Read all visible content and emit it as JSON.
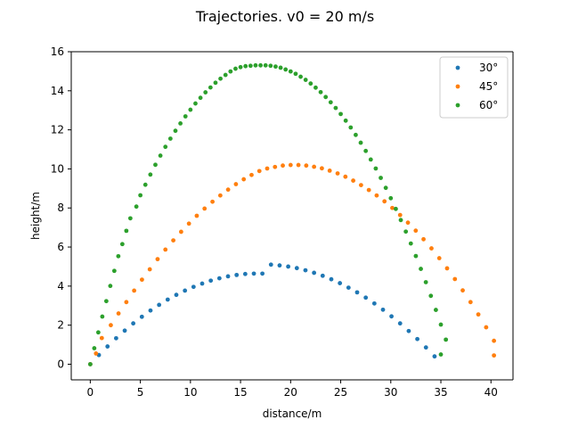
{
  "chart_data": {
    "type": "scatter",
    "title": "Trajectories. v0 = 20 m/s",
    "xlabel": "distance/m",
    "ylabel": "height/m",
    "xlim": [
      -1.9,
      42.2
    ],
    "ylim": [
      -0.8,
      16.0
    ],
    "xticks": [
      0,
      5,
      10,
      15,
      20,
      25,
      30,
      35,
      40
    ],
    "yticks": [
      0,
      2,
      4,
      6,
      8,
      10,
      12,
      14,
      16
    ],
    "grid": false,
    "legend_position": "top-right",
    "series": [
      {
        "name": "30°",
        "color": "#1f77b4",
        "points": [
          [
            0.0,
            0.0
          ],
          [
            0.86,
            0.47
          ],
          [
            1.72,
            0.91
          ],
          [
            2.58,
            1.33
          ],
          [
            3.44,
            1.72
          ],
          [
            4.29,
            2.09
          ],
          [
            5.15,
            2.43
          ],
          [
            6.01,
            2.75
          ],
          [
            6.87,
            3.04
          ],
          [
            7.73,
            3.31
          ],
          [
            8.59,
            3.55
          ],
          [
            9.45,
            3.77
          ],
          [
            10.31,
            3.96
          ],
          [
            11.17,
            4.13
          ],
          [
            12.03,
            4.28
          ],
          [
            12.89,
            4.4
          ],
          [
            13.75,
            4.5
          ],
          [
            14.61,
            4.57
          ],
          [
            15.47,
            4.62
          ],
          [
            16.33,
            4.64
          ],
          [
            17.18,
            4.64
          ],
          [
            18.04,
            5.1
          ],
          [
            18.9,
            5.06
          ],
          [
            19.76,
            5.0
          ],
          [
            20.62,
            4.92
          ],
          [
            21.48,
            4.81
          ],
          [
            22.34,
            4.68
          ],
          [
            23.2,
            4.53
          ],
          [
            24.06,
            4.35
          ],
          [
            24.92,
            4.15
          ],
          [
            25.78,
            3.92
          ],
          [
            26.64,
            3.68
          ],
          [
            27.5,
            3.41
          ],
          [
            28.36,
            3.11
          ],
          [
            29.22,
            2.79
          ],
          [
            30.07,
            2.45
          ],
          [
            30.93,
            2.09
          ],
          [
            31.79,
            1.7
          ],
          [
            32.65,
            1.29
          ],
          [
            33.51,
            0.86
          ],
          [
            34.37,
            0.4
          ]
        ]
      },
      {
        "name": "45°",
        "color": "#ff7f0e",
        "points": [
          [
            0.0,
            0.0
          ],
          [
            0.57,
            0.55
          ],
          [
            1.15,
            1.34
          ],
          [
            2.05,
            2.0
          ],
          [
            2.82,
            2.6
          ],
          [
            3.6,
            3.18
          ],
          [
            4.38,
            3.77
          ],
          [
            5.16,
            4.33
          ],
          [
            5.94,
            4.86
          ],
          [
            6.72,
            5.38
          ],
          [
            7.5,
            5.87
          ],
          [
            8.29,
            6.34
          ],
          [
            9.07,
            6.78
          ],
          [
            9.85,
            7.2
          ],
          [
            10.63,
            7.6
          ],
          [
            11.41,
            7.97
          ],
          [
            12.2,
            8.32
          ],
          [
            12.98,
            8.64
          ],
          [
            13.76,
            8.94
          ],
          [
            14.54,
            9.22
          ],
          [
            15.32,
            9.47
          ],
          [
            16.1,
            9.69
          ],
          [
            16.88,
            9.89
          ],
          [
            17.66,
            10.02
          ],
          [
            18.44,
            10.1
          ],
          [
            19.22,
            10.17
          ],
          [
            20.0,
            10.2
          ],
          [
            20.78,
            10.2
          ],
          [
            21.56,
            10.17
          ],
          [
            22.34,
            10.11
          ],
          [
            23.12,
            10.03
          ],
          [
            23.9,
            9.91
          ],
          [
            24.69,
            9.77
          ],
          [
            25.47,
            9.6
          ],
          [
            26.25,
            9.4
          ],
          [
            27.03,
            9.17
          ],
          [
            27.81,
            8.92
          ],
          [
            28.59,
            8.64
          ],
          [
            29.37,
            8.34
          ],
          [
            30.15,
            8.0
          ],
          [
            30.93,
            7.64
          ],
          [
            31.71,
            7.25
          ],
          [
            32.49,
            6.84
          ],
          [
            33.27,
            6.4
          ],
          [
            34.06,
            5.93
          ],
          [
            34.84,
            5.43
          ],
          [
            35.62,
            4.91
          ],
          [
            36.4,
            4.36
          ],
          [
            37.18,
            3.78
          ],
          [
            37.96,
            3.18
          ],
          [
            38.74,
            2.55
          ],
          [
            39.52,
            1.89
          ],
          [
            40.3,
            1.2
          ],
          [
            40.3,
            0.45
          ]
        ]
      },
      {
        "name": "60°",
        "color": "#2ca02c",
        "points": [
          [
            0.0,
            0.0
          ],
          [
            0.4,
            0.82
          ],
          [
            0.8,
            1.63
          ],
          [
            1.2,
            2.44
          ],
          [
            1.6,
            3.23
          ],
          [
            2.0,
            4.01
          ],
          [
            2.4,
            4.78
          ],
          [
            2.8,
            5.53
          ],
          [
            3.2,
            6.15
          ],
          [
            3.6,
            6.83
          ],
          [
            4.0,
            7.47
          ],
          [
            4.6,
            8.07
          ],
          [
            5.0,
            8.65
          ],
          [
            5.5,
            9.19
          ],
          [
            6.0,
            9.71
          ],
          [
            6.5,
            10.21
          ],
          [
            7.0,
            10.68
          ],
          [
            7.5,
            11.13
          ],
          [
            8.0,
            11.55
          ],
          [
            8.5,
            11.95
          ],
          [
            9.0,
            12.33
          ],
          [
            9.5,
            12.69
          ],
          [
            10.0,
            13.03
          ],
          [
            10.5,
            13.35
          ],
          [
            11.0,
            13.64
          ],
          [
            11.5,
            13.92
          ],
          [
            12.0,
            14.17
          ],
          [
            12.5,
            14.41
          ],
          [
            13.0,
            14.62
          ],
          [
            13.5,
            14.81
          ],
          [
            14.0,
            14.99
          ],
          [
            14.5,
            15.13
          ],
          [
            15.0,
            15.21
          ],
          [
            15.5,
            15.26
          ],
          [
            16.0,
            15.28
          ],
          [
            16.5,
            15.3
          ],
          [
            17.0,
            15.3
          ],
          [
            17.5,
            15.3
          ],
          [
            18.0,
            15.28
          ],
          [
            18.5,
            15.24
          ],
          [
            19.0,
            15.18
          ],
          [
            19.5,
            15.09
          ],
          [
            20.0,
            14.99
          ],
          [
            20.5,
            14.87
          ],
          [
            21.0,
            14.72
          ],
          [
            21.5,
            14.56
          ],
          [
            22.0,
            14.37
          ],
          [
            22.5,
            14.16
          ],
          [
            23.0,
            13.93
          ],
          [
            23.5,
            13.68
          ],
          [
            24.0,
            13.41
          ],
          [
            24.5,
            13.12
          ],
          [
            25.0,
            12.81
          ],
          [
            25.5,
            12.47
          ],
          [
            26.0,
            12.12
          ],
          [
            26.5,
            11.74
          ],
          [
            27.0,
            11.34
          ],
          [
            27.5,
            10.92
          ],
          [
            28.0,
            10.48
          ],
          [
            28.5,
            10.02
          ],
          [
            29.0,
            9.54
          ],
          [
            29.5,
            9.03
          ],
          [
            30.0,
            8.5
          ],
          [
            30.5,
            7.95
          ],
          [
            31.0,
            7.38
          ],
          [
            31.5,
            6.79
          ],
          [
            32.0,
            6.18
          ],
          [
            32.5,
            5.54
          ],
          [
            33.0,
            4.88
          ],
          [
            33.5,
            4.2
          ],
          [
            34.0,
            3.5
          ],
          [
            34.5,
            2.78
          ],
          [
            35.0,
            2.03
          ],
          [
            35.5,
            1.26
          ],
          [
            35.0,
            0.5
          ]
        ]
      }
    ]
  }
}
